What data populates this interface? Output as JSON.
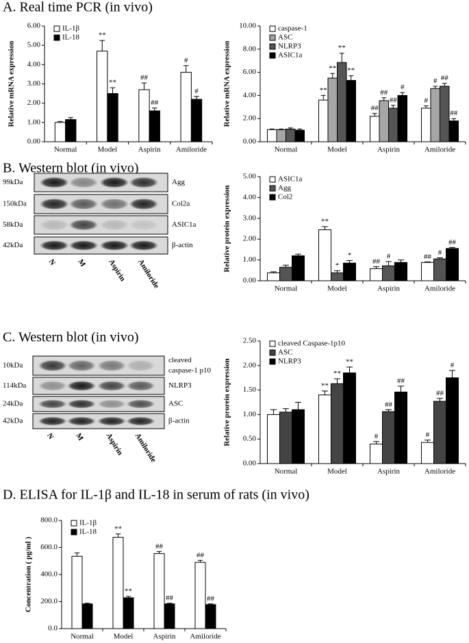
{
  "sections": [
    "A. Real time PCR (in vivo)",
    "B. Western blot (in vivo)",
    "C. Western blot (in vivo)",
    "D. ELISA for IL-1β and IL-18  in serum of rats (in vivo)"
  ],
  "blots": [
    {
      "left_labels": [
        "99kDa",
        "150kDa",
        "58kDa",
        "42kDa"
      ],
      "right_labels": [
        [
          "Agg"
        ],
        [
          "Col2a"
        ],
        [
          "ASIC1a"
        ],
        [
          "β-actin"
        ]
      ],
      "lanes": [
        "N",
        "M",
        "Aspirin",
        "Amiloride"
      ]
    },
    {
      "left_labels": [
        "10kDa",
        "114kDa",
        "24kDa",
        "42kDa"
      ],
      "right_labels": [
        [
          "cleaved",
          "caspase-1 p10"
        ],
        [
          "NLRP3"
        ],
        [
          "ASC"
        ],
        [
          "β-actin"
        ]
      ],
      "lanes": [
        "N",
        "M",
        "Aspirin",
        "Amiloride"
      ]
    }
  ],
  "chart_data": [
    {
      "type": "bar",
      "y_label": "Relative mRNA expression",
      "legend": "upper left",
      "categories": [
        "Normal",
        "Model",
        "Aspirin",
        "Amiloride"
      ],
      "ylim": [
        0,
        6
      ],
      "yticks": [
        {
          "value": 0,
          "label": "0.00"
        },
        {
          "value": 1,
          "label": "1.00"
        },
        {
          "value": 2,
          "label": "2.00"
        },
        {
          "value": 3,
          "label": "3.00"
        },
        {
          "value": 4,
          "label": "4.00"
        },
        {
          "value": 5,
          "label": "5.00"
        },
        {
          "value": 6,
          "label": "6.00"
        }
      ],
      "series": [
        {
          "name": "IL-1β",
          "color": "#ffffff",
          "values": [
            1.0,
            4.7,
            2.7,
            3.6
          ],
          "errors": [
            0.05,
            0.55,
            0.35,
            0.35
          ],
          "annotations": [
            null,
            "**",
            "##",
            "#"
          ]
        },
        {
          "name": "IL-18",
          "color": "#000000",
          "values": [
            1.15,
            2.5,
            1.6,
            2.2
          ],
          "errors": [
            0.1,
            0.3,
            0.15,
            0.15
          ],
          "annotations": [
            null,
            "**",
            "##",
            "#"
          ]
        }
      ]
    },
    {
      "type": "bar",
      "y_label": "Relative mRNA expression",
      "legend": "upper left",
      "categories": [
        "Normal",
        "Model",
        "Aspirin",
        "Amiloride"
      ],
      "ylim": [
        0,
        10
      ],
      "yticks": [
        {
          "value": 0,
          "label": "0.00"
        },
        {
          "value": 2,
          "label": "2.00"
        },
        {
          "value": 4,
          "label": "4.00"
        },
        {
          "value": 6,
          "label": "6.00"
        },
        {
          "value": 8,
          "label": "8.00"
        },
        {
          "value": 10,
          "label": "10.00"
        }
      ],
      "series": [
        {
          "name": "caspase-1",
          "color": "#ffffff",
          "values": [
            1.05,
            3.6,
            2.2,
            2.9
          ],
          "errors": [
            0.05,
            0.4,
            0.25,
            0.2
          ],
          "annotations": [
            null,
            "**",
            "##",
            "#"
          ]
        },
        {
          "name": "ASC",
          "color": "#a6a6a6",
          "values": [
            1.05,
            5.5,
            3.55,
            4.6
          ],
          "errors": [
            0.05,
            0.4,
            0.25,
            0.2
          ],
          "annotations": [
            null,
            "**",
            "##",
            "#"
          ]
        },
        {
          "name": "NLRP3",
          "color": "#555555",
          "values": [
            1.1,
            6.85,
            2.9,
            4.8
          ],
          "errors": [
            0.1,
            0.8,
            0.25,
            0.25
          ],
          "annotations": [
            null,
            "**",
            "##",
            "##"
          ]
        },
        {
          "name": "ASIC1a",
          "color": "#000000",
          "values": [
            1.0,
            5.3,
            4.0,
            1.8
          ],
          "errors": [
            0.1,
            0.4,
            0.25,
            0.2
          ],
          "annotations": [
            null,
            "**",
            "#",
            "##"
          ]
        }
      ]
    },
    {
      "type": "bar",
      "y_label": "Relative protein expression",
      "legend": "upper left",
      "categories": [
        "Normal",
        "Model",
        "Aspirin",
        "Amiloride"
      ],
      "ylim": [
        0,
        5
      ],
      "yticks": [
        {
          "value": 0,
          "label": "0.00"
        },
        {
          "value": 1,
          "label": "1.00"
        },
        {
          "value": 2,
          "label": "2.00"
        },
        {
          "value": 3,
          "label": "3.00"
        },
        {
          "value": 4,
          "label": "4.00"
        },
        {
          "value": 5,
          "label": "5.00"
        }
      ],
      "series": [
        {
          "name": "ASIC1a",
          "color": "#ffffff",
          "values": [
            0.38,
            2.45,
            0.58,
            0.88
          ],
          "errors": [
            0.05,
            0.15,
            0.1,
            0.03
          ],
          "annotations": [
            null,
            "**",
            "##",
            "##"
          ]
        },
        {
          "name": "Agg",
          "color": "#555555",
          "values": [
            0.65,
            0.38,
            0.72,
            1.05
          ],
          "errors": [
            0.1,
            0.1,
            0.2,
            0.05
          ],
          "annotations": [
            null,
            "*",
            "#",
            "#"
          ]
        },
        {
          "name": "Col2",
          "color": "#000000",
          "values": [
            1.2,
            0.85,
            0.88,
            1.55
          ],
          "errors": [
            0.08,
            0.12,
            0.12,
            0.05
          ],
          "annotations": [
            null,
            "*",
            null,
            "##"
          ]
        }
      ]
    },
    {
      "type": "bar",
      "y_label": "Relative prorein expression",
      "legend": "upper left",
      "categories": [
        "Normal",
        "Model",
        "Aspirin",
        "Amiloride"
      ],
      "ylim": [
        0,
        2.5
      ],
      "yticks": [
        {
          "value": 0,
          "label": "0.00"
        },
        {
          "value": 0.5,
          "label": "0.50"
        },
        {
          "value": 1,
          "label": "1.00"
        },
        {
          "value": 1.5,
          "label": "1.50"
        },
        {
          "value": 2,
          "label": "2.00"
        },
        {
          "value": 2.5,
          "label": "2.50"
        }
      ],
      "series": [
        {
          "name": "cleaved Caspase-1p10",
          "color": "#ffffff",
          "values": [
            1.0,
            1.4,
            0.4,
            0.43
          ],
          "errors": [
            0.1,
            0.08,
            0.05,
            0.05
          ],
          "annotations": [
            null,
            "**",
            "#",
            "#"
          ]
        },
        {
          "name": "ASC",
          "color": "#444444",
          "values": [
            1.05,
            1.63,
            1.06,
            1.27
          ],
          "errors": [
            0.07,
            0.1,
            0.04,
            0.06
          ],
          "annotations": [
            null,
            "**",
            "##",
            "##"
          ]
        },
        {
          "name": "NLRP3",
          "color": "#000000",
          "values": [
            1.1,
            1.85,
            1.46,
            1.75
          ],
          "errors": [
            0.15,
            0.12,
            0.12,
            0.15
          ],
          "annotations": [
            null,
            "**",
            "##",
            "#"
          ]
        }
      ]
    },
    {
      "type": "bar",
      "y_label": "Concentration ( pg/ml )",
      "legend": "upper left",
      "categories": [
        "Normal",
        "Model",
        "Aspirin",
        "Amiloride"
      ],
      "ylim": [
        0,
        800
      ],
      "yticks": [
        {
          "value": 0,
          "label": "0.0"
        },
        {
          "value": 200,
          "label": "200.0"
        },
        {
          "value": 400,
          "label": "400.0"
        },
        {
          "value": 600,
          "label": "600.0"
        },
        {
          "value": 800,
          "label": "800.0"
        }
      ],
      "series": [
        {
          "name": "IL-1β",
          "color": "#ffffff",
          "values": [
            535,
            675,
            555,
            490
          ],
          "errors": [
            25,
            25,
            15,
            15
          ],
          "annotations": [
            null,
            "**",
            "##",
            "##"
          ]
        },
        {
          "name": "IL-18",
          "color": "#000000",
          "values": [
            183,
            228,
            183,
            178
          ],
          "errors": [
            5,
            10,
            5,
            5
          ],
          "annotations": [
            null,
            "**",
            "##",
            "##"
          ]
        }
      ]
    }
  ]
}
